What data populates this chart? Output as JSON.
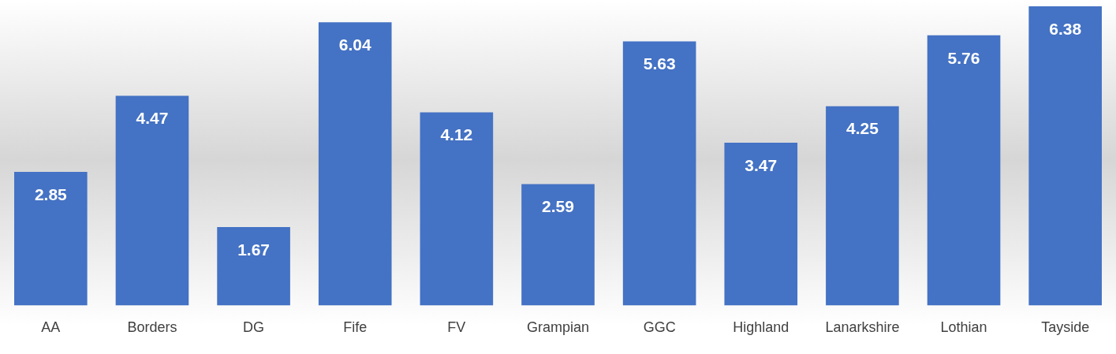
{
  "chart_data": {
    "type": "bar",
    "categories": [
      "AA",
      "Borders",
      "DG",
      "Fife",
      "FV",
      "Grampian",
      "GGC",
      "Highland",
      "Lanarkshire",
      "Lothian",
      "Tayside"
    ],
    "values": [
      2.85,
      4.47,
      1.67,
      6.04,
      4.12,
      2.59,
      5.63,
      3.47,
      4.25,
      5.76,
      6.38
    ],
    "color": "#4472c4",
    "data_labels": true,
    "grid": false,
    "legend": false
  }
}
